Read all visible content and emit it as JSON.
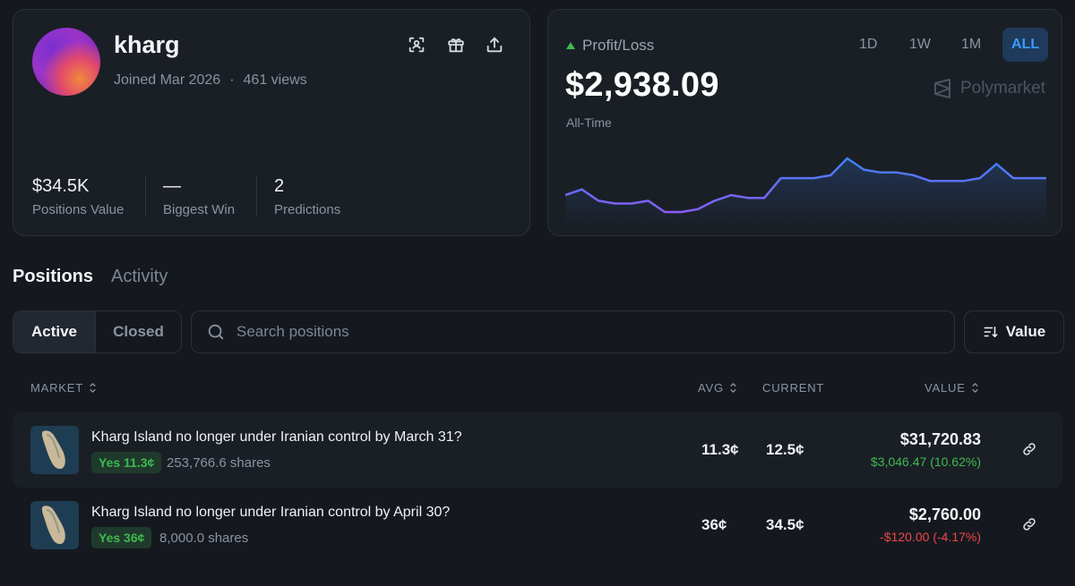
{
  "profile": {
    "username": "kharg",
    "joined": "Joined Mar 2026",
    "separator": "·",
    "views": "461 views",
    "stats": [
      {
        "value": "$34.5K",
        "label": "Positions Value"
      },
      {
        "value": "—",
        "label": "Biggest Win"
      },
      {
        "value": "2",
        "label": "Predictions"
      }
    ]
  },
  "pnl": {
    "label": "Profit/Loss",
    "value": "$2,938.09",
    "period": "All-Time",
    "timeframes": [
      "1D",
      "1W",
      "1M",
      "ALL"
    ],
    "active_timeframe": "ALL",
    "brand": "Polymarket",
    "trend_color": "#3fb950"
  },
  "chart_data": {
    "type": "line",
    "title": "",
    "xlabel": "",
    "ylabel": "",
    "grid": false,
    "series": [
      {
        "values": [
          6,
          8,
          4,
          3,
          3,
          4,
          0,
          0,
          1,
          4,
          6,
          5,
          5,
          12,
          12,
          12,
          13,
          19,
          15,
          14,
          14,
          13,
          11,
          11,
          11,
          12,
          17,
          12,
          12,
          12
        ]
      }
    ],
    "colors": {
      "low": "#8b5cf6",
      "high": "#3b82f6"
    }
  },
  "tabs": {
    "positions": "Positions",
    "activity": "Activity"
  },
  "filters": {
    "active": "Active",
    "closed": "Closed",
    "search_placeholder": "Search positions",
    "sort_label": "Value"
  },
  "table": {
    "headers": {
      "market": "MARKET",
      "avg": "AVG",
      "current": "CURRENT",
      "value": "VALUE"
    },
    "rows": [
      {
        "title": "Kharg Island no longer under Iranian control by March 31?",
        "outcome": "Yes 11.3¢",
        "shares": "253,766.6 shares",
        "avg": "11.3¢",
        "current": "12.5¢",
        "value": "$31,720.83",
        "change": "$3,046.47 (10.62%)"
      },
      {
        "title": "Kharg Island no longer under Iranian control by April 30?",
        "outcome": "Yes 36¢",
        "shares": "8,000.0 shares",
        "avg": "36¢",
        "current": "34.5¢",
        "value": "$2,760.00",
        "change": "-$120.00 (-4.17%)"
      }
    ]
  }
}
